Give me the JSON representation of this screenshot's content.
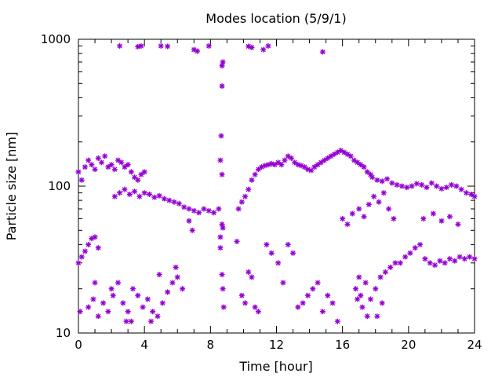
{
  "chart_data": {
    "type": "scatter",
    "title": "Modes location (5/9/1)",
    "xlabel": "Time [hour]",
    "ylabel": "Particle size [nm]",
    "xlim": [
      0,
      24
    ],
    "ylim": [
      10,
      1000
    ],
    "yscale": "log",
    "xticks": [
      0,
      4,
      8,
      12,
      16,
      20,
      24
    ],
    "yticks": [
      10,
      100,
      1000
    ],
    "xtick_labels": [
      "0",
      "4",
      "8",
      "12",
      "16",
      "20",
      "24"
    ],
    "ytick_labels": [
      "10",
      "100",
      "1000"
    ],
    "grid": false,
    "legend": "none",
    "marker": "asterisk",
    "color": "#9400d3",
    "points": [
      [
        0.0,
        125
      ],
      [
        0.2,
        110
      ],
      [
        0.4,
        135
      ],
      [
        0.6,
        150
      ],
      [
        0.8,
        140
      ],
      [
        1.0,
        130
      ],
      [
        1.2,
        155
      ],
      [
        1.4,
        145
      ],
      [
        1.6,
        160
      ],
      [
        1.8,
        135
      ],
      [
        2.0,
        140
      ],
      [
        2.2,
        130
      ],
      [
        2.4,
        150
      ],
      [
        2.6,
        145
      ],
      [
        2.8,
        135
      ],
      [
        3.0,
        140
      ],
      [
        3.2,
        125
      ],
      [
        3.4,
        115
      ],
      [
        3.6,
        110
      ],
      [
        3.8,
        120
      ],
      [
        4.0,
        125
      ],
      [
        2.2,
        85
      ],
      [
        2.5,
        90
      ],
      [
        2.8,
        95
      ],
      [
        3.1,
        88
      ],
      [
        3.4,
        92
      ],
      [
        3.7,
        85
      ],
      [
        4.0,
        90
      ],
      [
        4.3,
        88
      ],
      [
        4.6,
        84
      ],
      [
        4.9,
        86
      ],
      [
        5.2,
        82
      ],
      [
        5.5,
        80
      ],
      [
        5.8,
        78
      ],
      [
        6.1,
        76
      ],
      [
        6.4,
        72
      ],
      [
        6.7,
        70
      ],
      [
        7.0,
        68
      ],
      [
        7.3,
        66
      ],
      [
        7.6,
        70
      ],
      [
        7.9,
        68
      ],
      [
        8.2,
        66
      ],
      [
        8.5,
        70
      ],
      [
        6.7,
        58
      ],
      [
        6.9,
        50
      ],
      [
        8.7,
        55
      ],
      [
        8.75,
        52
      ],
      [
        8.6,
        150
      ],
      [
        8.7,
        120
      ],
      [
        8.65,
        220
      ],
      [
        8.7,
        480
      ],
      [
        8.75,
        700
      ],
      [
        8.7,
        660
      ],
      [
        2.5,
        900
      ],
      [
        3.6,
        890
      ],
      [
        3.8,
        900
      ],
      [
        5.0,
        900
      ],
      [
        5.4,
        895
      ],
      [
        7.0,
        850
      ],
      [
        7.2,
        830
      ],
      [
        7.9,
        900
      ],
      [
        10.3,
        895
      ],
      [
        10.5,
        880
      ],
      [
        11.2,
        850
      ],
      [
        11.5,
        900
      ],
      [
        14.8,
        820
      ],
      [
        9.7,
        70
      ],
      [
        9.9,
        78
      ],
      [
        10.1,
        85
      ],
      [
        10.3,
        95
      ],
      [
        10.5,
        110
      ],
      [
        10.7,
        120
      ],
      [
        10.9,
        130
      ],
      [
        11.1,
        135
      ],
      [
        11.3,
        138
      ],
      [
        11.5,
        140
      ],
      [
        11.7,
        142
      ],
      [
        11.9,
        140
      ],
      [
        12.1,
        145
      ],
      [
        12.3,
        140
      ],
      [
        12.5,
        150
      ],
      [
        12.7,
        160
      ],
      [
        12.9,
        155
      ],
      [
        13.1,
        145
      ],
      [
        13.3,
        140
      ],
      [
        13.5,
        138
      ],
      [
        13.7,
        135
      ],
      [
        13.9,
        130
      ],
      [
        14.1,
        128
      ],
      [
        14.3,
        135
      ],
      [
        14.5,
        140
      ],
      [
        14.7,
        145
      ],
      [
        14.9,
        150
      ],
      [
        15.1,
        155
      ],
      [
        15.3,
        160
      ],
      [
        15.5,
        165
      ],
      [
        15.7,
        170
      ],
      [
        15.9,
        175
      ],
      [
        16.1,
        170
      ],
      [
        16.3,
        165
      ],
      [
        16.5,
        160
      ],
      [
        16.7,
        150
      ],
      [
        16.9,
        145
      ],
      [
        17.1,
        140
      ],
      [
        17.3,
        135
      ],
      [
        17.5,
        125
      ],
      [
        17.7,
        120
      ],
      [
        16.0,
        60
      ],
      [
        16.3,
        55
      ],
      [
        16.6,
        65
      ],
      [
        17.0,
        70
      ],
      [
        17.3,
        62
      ],
      [
        17.6,
        75
      ],
      [
        17.9,
        85
      ],
      [
        18.2,
        78
      ],
      [
        18.5,
        90
      ],
      [
        18.8,
        70
      ],
      [
        19.1,
        60
      ],
      [
        17.8,
        115
      ],
      [
        18.1,
        110
      ],
      [
        18.4,
        108
      ],
      [
        18.7,
        112
      ],
      [
        19.0,
        105
      ],
      [
        19.3,
        102
      ],
      [
        19.6,
        100
      ],
      [
        19.9,
        98
      ],
      [
        20.2,
        100
      ],
      [
        20.5,
        104
      ],
      [
        20.8,
        102
      ],
      [
        21.1,
        98
      ],
      [
        21.4,
        105
      ],
      [
        21.7,
        100
      ],
      [
        22.0,
        96
      ],
      [
        22.3,
        98
      ],
      [
        22.6,
        102
      ],
      [
        22.9,
        100
      ],
      [
        23.2,
        95
      ],
      [
        23.5,
        90
      ],
      [
        23.8,
        88
      ],
      [
        24.0,
        85
      ],
      [
        20.9,
        60
      ],
      [
        21.5,
        65
      ],
      [
        22.0,
        58
      ],
      [
        22.5,
        62
      ],
      [
        23.0,
        55
      ],
      [
        0.0,
        30
      ],
      [
        0.2,
        33
      ],
      [
        0.4,
        36
      ],
      [
        0.6,
        40
      ],
      [
        0.8,
        44
      ],
      [
        1.0,
        45
      ],
      [
        1.2,
        38
      ],
      [
        0.1,
        14
      ],
      [
        0.6,
        15
      ],
      [
        0.9,
        17
      ],
      [
        1.2,
        13
      ],
      [
        1.5,
        16
      ],
      [
        1.8,
        14
      ],
      [
        2.1,
        18
      ],
      [
        2.4,
        22
      ],
      [
        2.7,
        16
      ],
      [
        3.0,
        14
      ],
      [
        3.3,
        20
      ],
      [
        3.6,
        18
      ],
      [
        3.9,
        15
      ],
      [
        4.2,
        17
      ],
      [
        4.5,
        14
      ],
      [
        4.8,
        13
      ],
      [
        5.1,
        16
      ],
      [
        5.4,
        19
      ],
      [
        5.7,
        22
      ],
      [
        6.0,
        24
      ],
      [
        6.3,
        20
      ],
      [
        1.0,
        22
      ],
      [
        2.0,
        20
      ],
      [
        2.9,
        12
      ],
      [
        3.2,
        12
      ],
      [
        4.4,
        12
      ],
      [
        4.9,
        25
      ],
      [
        5.9,
        28
      ],
      [
        8.6,
        38
      ],
      [
        8.7,
        25
      ],
      [
        8.75,
        20
      ],
      [
        8.8,
        15
      ],
      [
        8.6,
        45
      ],
      [
        9.6,
        42
      ],
      [
        9.9,
        18
      ],
      [
        10.1,
        16
      ],
      [
        10.3,
        26
      ],
      [
        10.5,
        24
      ],
      [
        10.7,
        15
      ],
      [
        10.9,
        14
      ],
      [
        11.4,
        40
      ],
      [
        11.7,
        35
      ],
      [
        12.1,
        30
      ],
      [
        12.4,
        22
      ],
      [
        12.7,
        40
      ],
      [
        13.0,
        35
      ],
      [
        13.3,
        15
      ],
      [
        13.6,
        16
      ],
      [
        13.9,
        18
      ],
      [
        14.2,
        20
      ],
      [
        14.5,
        22
      ],
      [
        14.8,
        14
      ],
      [
        15.1,
        18
      ],
      [
        15.4,
        16
      ],
      [
        15.7,
        12
      ],
      [
        16.8,
        20
      ],
      [
        17.1,
        18
      ],
      [
        17.4,
        22
      ],
      [
        17.7,
        17
      ],
      [
        18.0,
        20
      ],
      [
        18.3,
        24
      ],
      [
        18.6,
        26
      ],
      [
        18.9,
        28
      ],
      [
        19.2,
        30
      ],
      [
        19.5,
        30
      ],
      [
        19.8,
        33
      ],
      [
        20.1,
        35
      ],
      [
        20.4,
        38
      ],
      [
        20.7,
        40
      ],
      [
        21.0,
        32
      ],
      [
        21.3,
        30
      ],
      [
        21.6,
        29
      ],
      [
        21.9,
        31
      ],
      [
        22.2,
        30
      ],
      [
        22.5,
        32
      ],
      [
        22.8,
        31
      ],
      [
        23.1,
        33
      ],
      [
        23.4,
        32
      ],
      [
        23.7,
        33
      ],
      [
        24.0,
        32
      ],
      [
        17.2,
        15
      ],
      [
        17.5,
        13
      ],
      [
        18.1,
        13
      ],
      [
        18.4,
        16
      ],
      [
        17.0,
        24
      ],
      [
        16.9,
        17
      ]
    ]
  }
}
